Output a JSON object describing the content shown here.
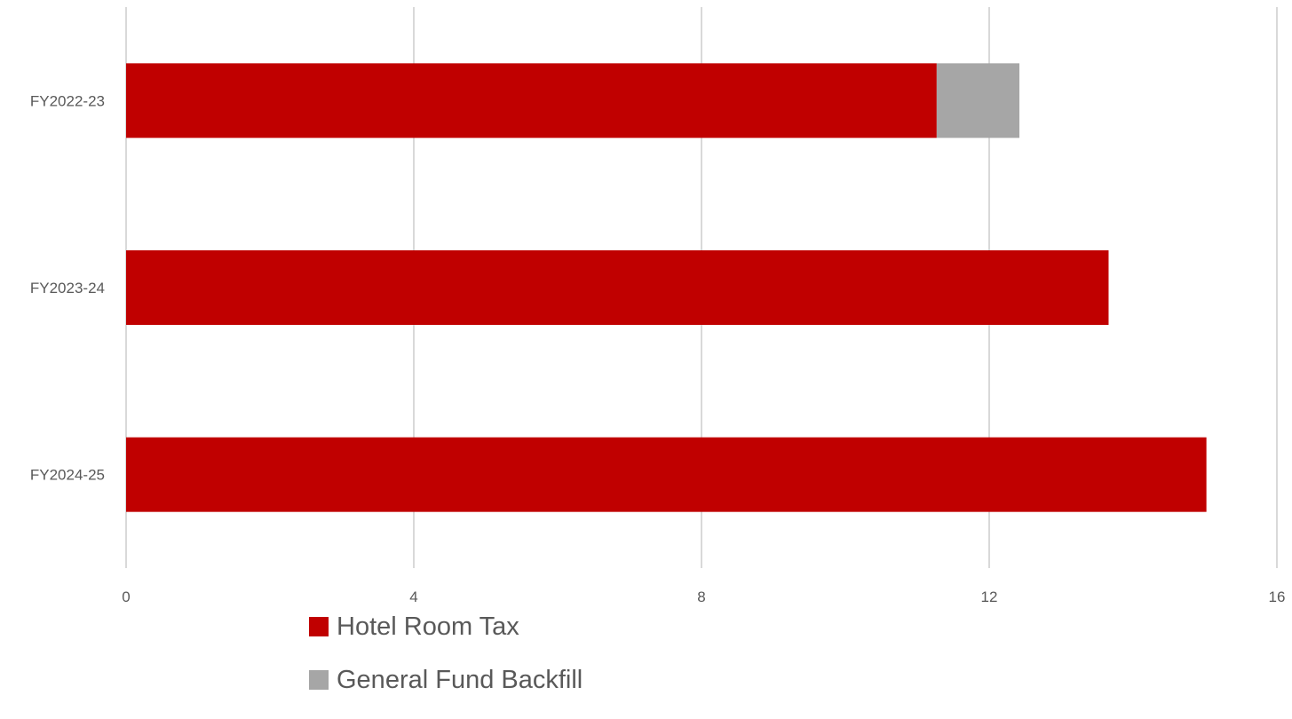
{
  "chart_data": {
    "type": "bar",
    "orientation": "horizontal",
    "stacked": true,
    "categories": [
      "FY2022-23",
      "FY2023-24",
      "FY2024-25"
    ],
    "series": [
      {
        "name": "Hotel Room Tax",
        "values": [
          11.27,
          13.66,
          15.02
        ],
        "color": "#c00000"
      },
      {
        "name": "General Fund Backfill",
        "values": [
          1.15,
          0,
          0
        ],
        "color": "#a6a6a6"
      }
    ],
    "x_ticks": [
      "0",
      "4",
      "8",
      "12",
      "16"
    ],
    "xlim": [
      0,
      16
    ],
    "grid": "vertical",
    "legend_position": "bottom"
  }
}
